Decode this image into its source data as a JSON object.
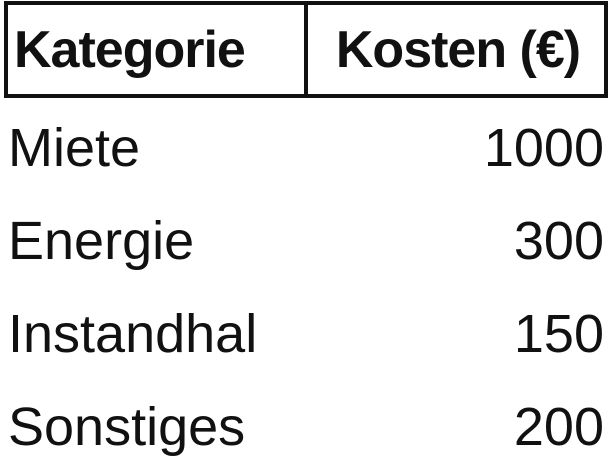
{
  "table": {
    "headers": {
      "category": "Kategorie",
      "cost": "Kosten (€)"
    },
    "rows": [
      {
        "category": "Miete",
        "cost": "1000"
      },
      {
        "category": "Energie",
        "cost": "300"
      },
      {
        "category": "Instandhal",
        "cost": "150"
      },
      {
        "category": "Sonstiges",
        "cost": "200"
      }
    ]
  }
}
